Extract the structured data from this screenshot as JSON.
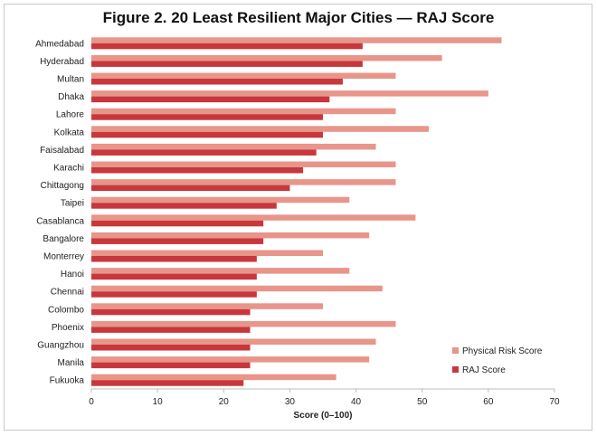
{
  "chart_data": {
    "type": "bar",
    "orientation": "horizontal",
    "title": "Figure 2. 20 Least Resilient Major Cities — RAJ Score",
    "xlabel": "Score (0–100)",
    "ylabel": "",
    "xlim": [
      0,
      70
    ],
    "xticks": [
      "0",
      "10",
      "20",
      "30",
      "40",
      "50",
      "60",
      "70"
    ],
    "grid": false,
    "legend_position": "bottom-right",
    "categories": [
      "Ahmedabad",
      "Hyderabad",
      "Multan",
      "Dhaka",
      "Lahore",
      "Kolkata",
      "Faisalabad",
      "Karachi",
      "Chittagong",
      "Taipei",
      "Casablanca",
      "Bangalore",
      "Monterrey",
      "Hanoi",
      "Chennai",
      "Colombo",
      "Phoenix",
      "Guangzhou",
      "Manila",
      "Fukuoka"
    ],
    "series": [
      {
        "name": "Physical Risk Score",
        "color": "#e8958a",
        "values": [
          62,
          53,
          46,
          60,
          46,
          51,
          43,
          46,
          46,
          39,
          49,
          42,
          35,
          39,
          44,
          35,
          46,
          43,
          42,
          37
        ]
      },
      {
        "name": "RAJ Score",
        "color": "#c8373c",
        "values": [
          41,
          41,
          38,
          36,
          35,
          35,
          34,
          32,
          30,
          28,
          26,
          26,
          25,
          25,
          25,
          24,
          24,
          24,
          24,
          23
        ]
      }
    ]
  }
}
